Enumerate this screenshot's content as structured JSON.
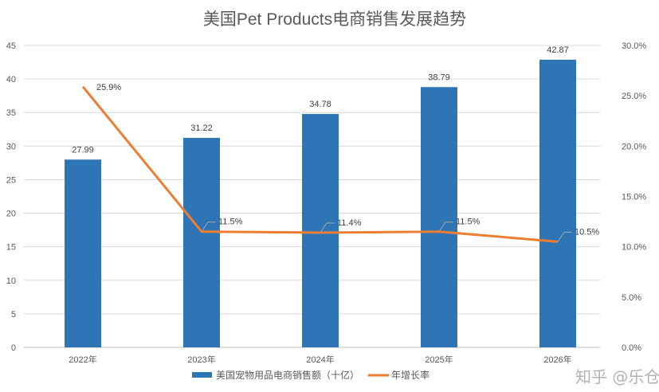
{
  "chart_data": {
    "type": "bar",
    "title": "美国Pet Products电商销售发展趋势",
    "categories": [
      "2022年",
      "2023年",
      "2024年",
      "2025年",
      "2026年"
    ],
    "series": [
      {
        "name": "美国宠物用品电商销售额（十亿）",
        "type": "bar",
        "axis": "left",
        "color": "#2E75B6",
        "values": [
          27.99,
          31.22,
          34.78,
          38.79,
          42.87
        ],
        "labels": [
          "27.99",
          "31.22",
          "34.78",
          "38.79",
          "42.87"
        ]
      },
      {
        "name": "年增长率",
        "type": "line",
        "axis": "right",
        "color": "#ED7D31",
        "values": [
          25.9,
          11.5,
          11.4,
          11.5,
          10.5
        ],
        "labels": [
          "25.9%",
          "11.5%",
          "11.4%",
          "11.5%",
          "10.5%"
        ]
      }
    ],
    "y_left": {
      "range": [
        0,
        45
      ],
      "ticks": [
        "0",
        "5",
        "10",
        "15",
        "20",
        "25",
        "30",
        "35",
        "40",
        "45"
      ]
    },
    "y_right": {
      "range": [
        0,
        30
      ],
      "ticks": [
        "0.0%",
        "5.0%",
        "10.0%",
        "15.0%",
        "20.0%",
        "25.0%",
        "30.0%"
      ]
    },
    "grid": true,
    "legend": "bottom"
  },
  "watermark": "知乎 @乐仓"
}
